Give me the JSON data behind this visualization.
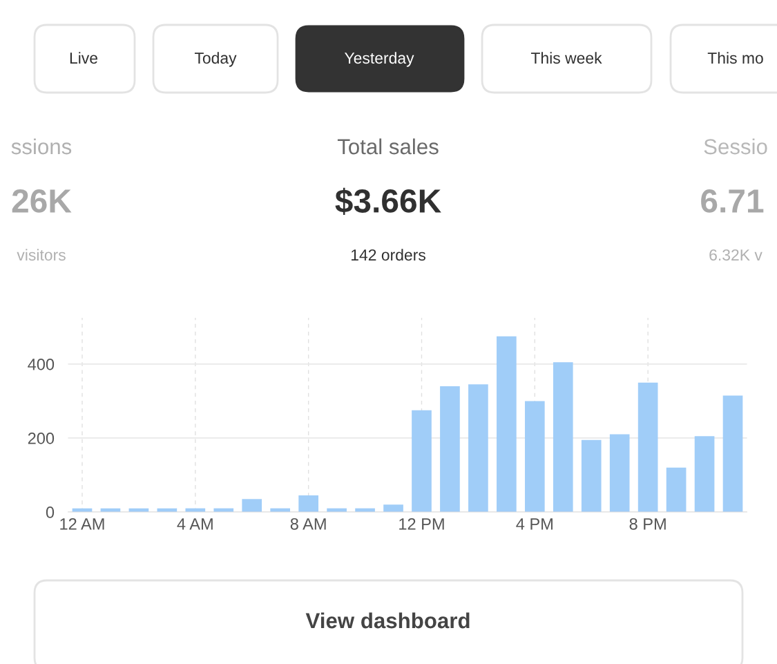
{
  "chart_data": [
    {
      "type": "other",
      "annotations": [
        "Live",
        "Today",
        "Yesterday",
        "This week",
        "This mo",
        "ssions",
        "26K",
        "visitors",
        "Total sales",
        "$3.66K",
        "142 orders",
        "Sessio",
        "6.71",
        "6.32K v",
        "View dashboard"
      ]
    },
    {
      "type": "bar",
      "categories": [
        "12 AM",
        null,
        null,
        null,
        "4 AM",
        null,
        null,
        null,
        "8 AM",
        null,
        null,
        null,
        "12 PM",
        null,
        null,
        null,
        "4 PM",
        null,
        null,
        null,
        "8 PM",
        null,
        null,
        null
      ],
      "values": [
        10,
        10,
        10,
        10,
        10,
        10,
        35,
        10,
        45,
        10,
        10,
        20,
        275,
        340,
        345,
        475,
        300,
        405,
        195,
        210,
        350,
        120,
        205,
        315
      ],
      "color": "#a0cdf8",
      "ylim": [
        0,
        525
      ],
      "yticks": [
        0,
        200,
        400
      ],
      "grid": true
    }
  ]
}
